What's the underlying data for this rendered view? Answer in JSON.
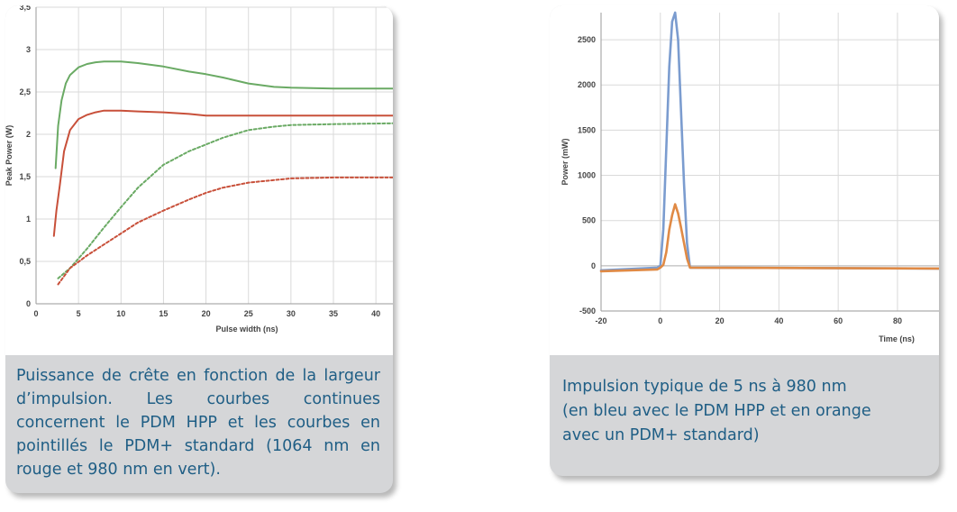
{
  "panels": [
    {
      "caption": "Puissance de crête en fonction de la largeur d’impulsion. Les courbes continues concernent le PDM HPP et les courbes en pointillés le PDM+ standard (1064 nm en rouge et 980 nm en vert)."
    },
    {
      "caption_lines": [
        "Impulsion typique de 5 ns à 980 nm",
        "(en bleu avec le PDM HPP et en orange",
        "avec un PDM+ standard)"
      ]
    }
  ],
  "colors": {
    "green": "#6aaa64",
    "red": "#c8503a",
    "blue": "#7b9ccf",
    "orange": "#e08a45",
    "grid": "#dadada",
    "axis_text": "#444444",
    "caption": "#1f5e85"
  },
  "chart_data": [
    {
      "type": "line",
      "xlabel": "Pulse width (ns)",
      "ylabel": "Peak Power (W)",
      "xlim": [
        0,
        42
      ],
      "ylim": [
        0,
        3.5
      ],
      "xticks": [
        0,
        5,
        10,
        15,
        20,
        25,
        30,
        35,
        40
      ],
      "yticks": [
        0,
        0.5,
        1,
        1.5,
        2,
        2.5,
        3,
        3.5
      ],
      "xtick_labels": [
        "0",
        "5",
        "10",
        "15",
        "20",
        "25",
        "30",
        "35",
        "40"
      ],
      "ytick_labels": [
        "0",
        "0,5",
        "1",
        "1,5",
        "2",
        "2,5",
        "3",
        "3,5"
      ],
      "grid": true,
      "series": [
        {
          "color": "green",
          "style": "solid",
          "x": [
            2.3,
            2.6,
            3,
            3.5,
            4,
            5,
            6,
            7,
            8,
            10,
            12,
            15,
            18,
            20,
            22,
            25,
            28,
            30,
            35,
            42
          ],
          "y": [
            1.6,
            2.1,
            2.4,
            2.6,
            2.7,
            2.79,
            2.83,
            2.85,
            2.86,
            2.86,
            2.84,
            2.8,
            2.74,
            2.71,
            2.67,
            2.6,
            2.56,
            2.55,
            2.54,
            2.54
          ]
        },
        {
          "color": "red",
          "style": "solid",
          "x": [
            2.1,
            2.4,
            2.8,
            3.3,
            4,
            5,
            6,
            7,
            8,
            10,
            12,
            15,
            18,
            20,
            25,
            30,
            35,
            42
          ],
          "y": [
            0.8,
            1.1,
            1.4,
            1.8,
            2.05,
            2.18,
            2.23,
            2.26,
            2.28,
            2.28,
            2.27,
            2.26,
            2.24,
            2.22,
            2.22,
            2.22,
            2.22,
            2.22
          ]
        },
        {
          "color": "green",
          "style": "dashed",
          "x": [
            2.6,
            4,
            6,
            8,
            10,
            12,
            15,
            18,
            20,
            22,
            25,
            28,
            30,
            35,
            42
          ],
          "y": [
            0.3,
            0.42,
            0.65,
            0.9,
            1.14,
            1.37,
            1.64,
            1.8,
            1.88,
            1.96,
            2.05,
            2.09,
            2.11,
            2.12,
            2.13
          ]
        },
        {
          "color": "red",
          "style": "dashed",
          "x": [
            2.6,
            4,
            6,
            8,
            10,
            12,
            15,
            18,
            20,
            22,
            25,
            28,
            30,
            35,
            42
          ],
          "y": [
            0.23,
            0.42,
            0.57,
            0.7,
            0.83,
            0.96,
            1.1,
            1.23,
            1.31,
            1.37,
            1.43,
            1.46,
            1.48,
            1.49,
            1.49
          ]
        }
      ]
    },
    {
      "type": "line",
      "xlabel": "Time (ns)",
      "ylabel": "Power (mW)",
      "xlim": [
        -20,
        94
      ],
      "ylim": [
        -500,
        2800
      ],
      "xticks": [
        -20,
        0,
        20,
        40,
        60,
        80
      ],
      "yticks": [
        -500,
        0,
        500,
        1000,
        1500,
        2000,
        2500
      ],
      "xtick_labels": [
        "-20",
        "0",
        "20",
        "40",
        "60",
        "80"
      ],
      "ytick_labels": [
        "-500",
        "0",
        "500",
        "1000",
        "1500",
        "2000",
        "2500"
      ],
      "grid": true,
      "series": [
        {
          "color": "blue",
          "x": [
            -20,
            -1,
            0,
            1,
            2,
            3,
            4,
            5,
            6,
            7,
            8,
            9,
            10,
            94
          ],
          "y": [
            -50,
            -20,
            0,
            400,
            1300,
            2200,
            2700,
            2800,
            2500,
            1700,
            900,
            250,
            -20,
            -30
          ]
        },
        {
          "color": "orange",
          "x": [
            -20,
            -1,
            0,
            1,
            2,
            3,
            4,
            5,
            6,
            7,
            8,
            9,
            10,
            94
          ],
          "y": [
            -60,
            -40,
            -20,
            10,
            150,
            400,
            560,
            680,
            580,
            420,
            250,
            80,
            -20,
            -30
          ]
        }
      ]
    }
  ]
}
